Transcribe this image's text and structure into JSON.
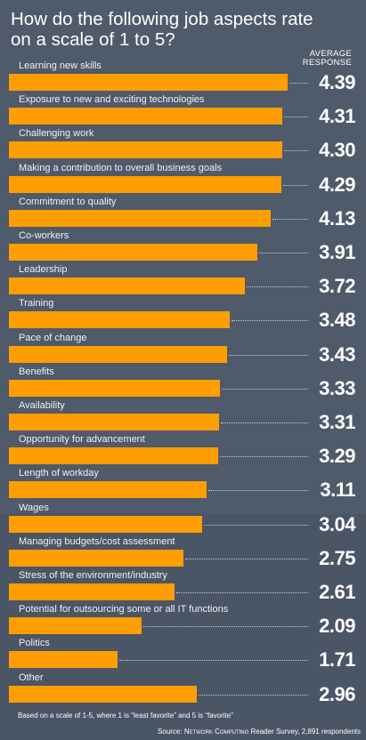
{
  "chart_data": {
    "type": "bar",
    "orientation": "horizontal",
    "title": "How do the following job aspects rate on a scale of 1 to 5?",
    "value_header": "AVERAGE RESPONSE",
    "categories": [
      "Learning new skills",
      "Exposure to new and exciting technologies",
      "Challenging work",
      "Making a contribution to overall business goals",
      "Commitment to quality",
      "Co-workers",
      "Leadership",
      "Training",
      "Pace of change",
      "Benefits",
      "Availability",
      "Opportunity for advancement",
      "Length of workday",
      "Wages",
      "Managing budgets/cost assessment",
      "Stress of the environment/industry",
      "Potential for outsourcing some or all IT functions",
      "Politics",
      "Other"
    ],
    "values": [
      4.39,
      4.31,
      4.3,
      4.29,
      4.13,
      3.91,
      3.72,
      3.48,
      3.43,
      3.33,
      3.31,
      3.29,
      3.11,
      3.04,
      2.75,
      2.61,
      2.09,
      1.71,
      2.96
    ],
    "value_labels": [
      "4.39",
      "4.31",
      "4.30",
      "4.29",
      "4.13",
      "3.91",
      "3.72",
      "3.48",
      "3.43",
      "3.33",
      "3.31",
      "3.29",
      "3.11",
      "3.04",
      "2.75",
      "2.61",
      "2.09",
      "1.71",
      "2.96"
    ],
    "bar_color": "#ff9e00",
    "background_color": "#4f5a6b",
    "footnote": "Based on a scale of 1-5, where 1 is “least favorite” and 5 is “favorite”",
    "source_prefix": "Source: ",
    "source_publication": "Network Computing",
    "source_suffix": " Reader Survey, 2,891 respondents"
  }
}
